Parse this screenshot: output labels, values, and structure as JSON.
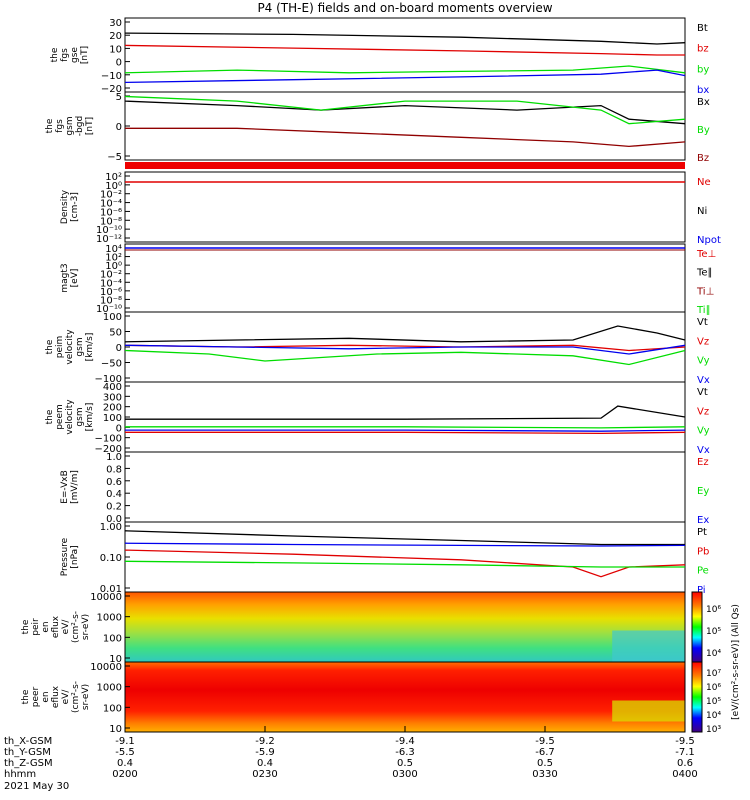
{
  "title": "P4 (TH-E) fields and on-board moments overview",
  "colors": {
    "black": "#000000",
    "red": "#e00000",
    "green": "#00dd00",
    "blue": "#0000ee",
    "darkred": "#900000"
  },
  "chart_data": [
    {
      "type": "line",
      "id": "p1",
      "ylabel": [
        "the",
        "fgs",
        "gse",
        "[nT]"
      ],
      "yticks": [
        "30",
        "20",
        "10",
        "0",
        "−10",
        "−20"
      ],
      "legend": [
        {
          "name": "Bt",
          "color": "black"
        },
        {
          "name": "bz",
          "color": "red"
        },
        {
          "name": "by",
          "color": "green"
        },
        {
          "name": "bx",
          "color": "blue"
        }
      ],
      "ylim": [
        -22,
        32
      ],
      "series": [
        {
          "name": "Bt",
          "color": "black",
          "x": [
            0,
            0.3,
            0.6,
            0.85,
            0.95,
            1
          ],
          "y": [
            21,
            20,
            18,
            15,
            13,
            14
          ]
        },
        {
          "name": "bz",
          "color": "red",
          "x": [
            0,
            0.3,
            0.6,
            0.85,
            0.95,
            1
          ],
          "y": [
            12,
            10,
            8,
            6,
            5,
            5
          ]
        },
        {
          "name": "by",
          "color": "green",
          "x": [
            0,
            0.2,
            0.4,
            0.6,
            0.8,
            0.9,
            1
          ],
          "y": [
            -8,
            -6,
            -8,
            -7,
            -6,
            -3,
            -8
          ]
        },
        {
          "name": "bx",
          "color": "blue",
          "x": [
            0,
            0.3,
            0.6,
            0.85,
            0.95,
            1
          ],
          "y": [
            -15,
            -13,
            -11,
            -9,
            -6,
            -10
          ]
        }
      ]
    },
    {
      "type": "line",
      "id": "p2",
      "ylabel": [
        "the",
        "fgs",
        "gsm",
        "-bgd",
        "[nT]"
      ],
      "yticks": [
        "5",
        "0",
        "−5"
      ],
      "legend": [
        {
          "name": "Bx",
          "color": "black"
        },
        {
          "name": "By",
          "color": "green"
        },
        {
          "name": "Bz",
          "color": "darkred"
        }
      ],
      "ylim": [
        -7,
        8
      ],
      "series": [
        {
          "name": "Bx",
          "color": "black",
          "x": [
            0,
            0.2,
            0.35,
            0.5,
            0.7,
            0.85,
            0.9,
            1
          ],
          "y": [
            6,
            5,
            4,
            5,
            4,
            5,
            2,
            1
          ]
        },
        {
          "name": "By",
          "color": "green",
          "x": [
            0,
            0.2,
            0.35,
            0.5,
            0.7,
            0.85,
            0.9,
            1
          ],
          "y": [
            7,
            6,
            4,
            6,
            6,
            4,
            1,
            2
          ]
        },
        {
          "name": "Bz",
          "color": "darkred",
          "x": [
            0,
            0.2,
            0.4,
            0.6,
            0.8,
            0.9,
            1
          ],
          "y": [
            0,
            0,
            -1,
            -2,
            -3,
            -4,
            -3
          ]
        }
      ]
    },
    {
      "type": "line",
      "id": "p3",
      "ylabel": [
        "Density",
        "[cm-3]"
      ],
      "yticks": [
        "10²",
        "10⁰",
        "10⁻²",
        "10⁻⁴",
        "10⁻⁶",
        "10⁻⁸",
        "10⁻¹⁰",
        "10⁻¹²"
      ],
      "legend": [
        {
          "name": "Ne",
          "color": "red"
        },
        {
          "name": "Ni",
          "color": "black"
        },
        {
          "name": "Npot",
          "color": "blue"
        }
      ],
      "series": []
    },
    {
      "type": "line",
      "id": "p4",
      "ylabel": [
        "magt3",
        "[eV]"
      ],
      "yticks": [
        "10⁴",
        "10²",
        "10⁰",
        "10⁻²",
        "10⁻⁴",
        "10⁻⁶",
        "10⁻⁸",
        "10⁻¹⁰"
      ],
      "legend": [
        {
          "name": "Te⊥",
          "color": "red"
        },
        {
          "name": "Te∥",
          "color": "black"
        },
        {
          "name": "Ti⊥",
          "color": "darkred"
        },
        {
          "name": "Ti∥",
          "color": "green"
        }
      ],
      "series": []
    },
    {
      "type": "line",
      "id": "p5",
      "ylabel": [
        "the",
        "peim",
        "velocity",
        "gsm",
        "[km/s]"
      ],
      "yticks": [
        "100",
        "50",
        "0",
        "−50",
        "−100"
      ],
      "legend": [
        {
          "name": "Vt",
          "color": "black"
        },
        {
          "name": "Vz",
          "color": "red"
        },
        {
          "name": "Vy",
          "color": "green"
        },
        {
          "name": "Vx",
          "color": "blue"
        }
      ],
      "ylim": [
        -100,
        100
      ],
      "series": [
        {
          "name": "Vt",
          "color": "black",
          "x": [
            0,
            0.2,
            0.4,
            0.6,
            0.8,
            0.88,
            0.95,
            1
          ],
          "y": [
            15,
            20,
            25,
            15,
            20,
            60,
            40,
            20
          ]
        },
        {
          "name": "Vz",
          "color": "red",
          "x": [
            0,
            0.2,
            0.4,
            0.6,
            0.8,
            0.9,
            1
          ],
          "y": [
            5,
            0,
            5,
            0,
            5,
            -10,
            0
          ]
        },
        {
          "name": "Vy",
          "color": "green",
          "x": [
            0,
            0.15,
            0.25,
            0.45,
            0.6,
            0.8,
            0.9,
            1
          ],
          "y": [
            -10,
            -20,
            -40,
            -20,
            -15,
            -25,
            -50,
            -10
          ]
        },
        {
          "name": "Vx",
          "color": "blue",
          "x": [
            0,
            0.2,
            0.4,
            0.6,
            0.8,
            0.9,
            1
          ],
          "y": [
            5,
            0,
            -5,
            0,
            0,
            -20,
            5
          ]
        }
      ]
    },
    {
      "type": "line",
      "id": "p6",
      "ylabel": [
        "the",
        "peem",
        "velocity",
        "gsm",
        "[km/s]"
      ],
      "yticks": [
        "400",
        "300",
        "200",
        "100",
        "0",
        "−100",
        "−200"
      ],
      "legend": [
        {
          "name": "Vt",
          "color": "black"
        },
        {
          "name": "Vz",
          "color": "red"
        },
        {
          "name": "Vy",
          "color": "green"
        },
        {
          "name": "Vx",
          "color": "blue"
        }
      ],
      "ylim": [
        -220,
        420
      ],
      "series": [
        {
          "name": "Vt",
          "color": "black",
          "x": [
            0,
            0.5,
            0.85,
            0.88,
            1
          ],
          "y": [
            80,
            80,
            90,
            200,
            100
          ]
        },
        {
          "name": "Vz",
          "color": "red",
          "x": [
            0,
            0.5,
            0.85,
            1
          ],
          "y": [
            -40,
            -40,
            -50,
            -40
          ]
        },
        {
          "name": "Vy",
          "color": "green",
          "x": [
            0,
            0.5,
            0.85,
            1
          ],
          "y": [
            10,
            10,
            0,
            10
          ]
        },
        {
          "name": "Vx",
          "color": "blue",
          "x": [
            0,
            0.5,
            0.85,
            1
          ],
          "y": [
            -20,
            -20,
            -30,
            -20
          ]
        }
      ]
    },
    {
      "type": "line",
      "id": "p7",
      "ylabel": [
        "E=-VxB",
        "[mV/m]"
      ],
      "yticks": [
        "1.0",
        "0.8",
        "0.6",
        "0.4",
        "0.2",
        "0.0"
      ],
      "legend": [
        {
          "name": "Ez",
          "color": "red"
        },
        {
          "name": "Ey",
          "color": "green"
        },
        {
          "name": "Ex",
          "color": "blue"
        }
      ],
      "ylim": [
        0,
        1
      ],
      "series": []
    },
    {
      "type": "line",
      "id": "p8",
      "ylabel": [
        "Pressure",
        "[nPa]"
      ],
      "yticks": [
        "1.00",
        "0.10",
        "0.01"
      ],
      "legend": [
        {
          "name": "Pt",
          "color": "black"
        },
        {
          "name": "Pb",
          "color": "red"
        },
        {
          "name": "Pe",
          "color": "green"
        },
        {
          "name": "Pi",
          "color": "blue"
        }
      ],
      "log": true,
      "ylim": [
        0.01,
        1.5
      ],
      "series": [
        {
          "name": "Pt",
          "color": "black",
          "x": [
            0,
            0.3,
            0.6,
            0.85,
            1
          ],
          "y": [
            0.8,
            0.55,
            0.4,
            0.3,
            0.3
          ]
        },
        {
          "name": "Pi",
          "color": "blue",
          "x": [
            0,
            0.3,
            0.6,
            0.85,
            1
          ],
          "y": [
            0.33,
            0.3,
            0.28,
            0.27,
            0.28
          ]
        },
        {
          "name": "Pb",
          "color": "red",
          "x": [
            0,
            0.3,
            0.6,
            0.8,
            0.85,
            0.9,
            1
          ],
          "y": [
            0.2,
            0.15,
            0.1,
            0.06,
            0.03,
            0.06,
            0.07
          ]
        },
        {
          "name": "Pe",
          "color": "green",
          "x": [
            0,
            0.3,
            0.6,
            0.85,
            1
          ],
          "y": [
            0.09,
            0.08,
            0.07,
            0.06,
            0.06
          ]
        }
      ]
    },
    {
      "type": "heatmap",
      "id": "p9",
      "ylabel": [
        "the",
        "peir",
        "en",
        "eflux",
        "eV/",
        "(cm²-s-",
        "sr-eV)"
      ],
      "yticks": [
        "10000",
        "1000",
        "100",
        "10"
      ]
    },
    {
      "type": "heatmap",
      "id": "p10",
      "ylabel": [
        "the",
        "peer",
        "en",
        "eflux",
        "eV/",
        "(cm²-s-",
        "sr-eV)"
      ],
      "yticks": [
        "10000",
        "1000",
        "100",
        "10"
      ]
    }
  ],
  "colorbar": {
    "upper_ticks": [
      "10⁶",
      "10⁵",
      "10⁴"
    ],
    "lower_ticks": [
      "10⁷",
      "10⁶",
      "10⁵",
      "10⁴",
      "10³"
    ],
    "label": "[eV/(cm²-s-sr-eV)] (All Qs)"
  },
  "xaxis": {
    "rows": [
      {
        "label": "th_X-GSM",
        "values": [
          "-9.1",
          "-9.2",
          "-9.4",
          "-9.5",
          "-9.5"
        ]
      },
      {
        "label": "th_Y-GSM",
        "values": [
          "-5.5",
          "-5.9",
          "-6.3",
          "-6.7",
          "-7.1"
        ]
      },
      {
        "label": "th_Z-GSM",
        "values": [
          "0.4",
          "0.4",
          "0.5",
          "0.5",
          "0.6"
        ]
      },
      {
        "label": "hhmm",
        "values": [
          "0200",
          "0230",
          "0300",
          "0330",
          "0400"
        ]
      }
    ],
    "date": "2021 May 30"
  }
}
